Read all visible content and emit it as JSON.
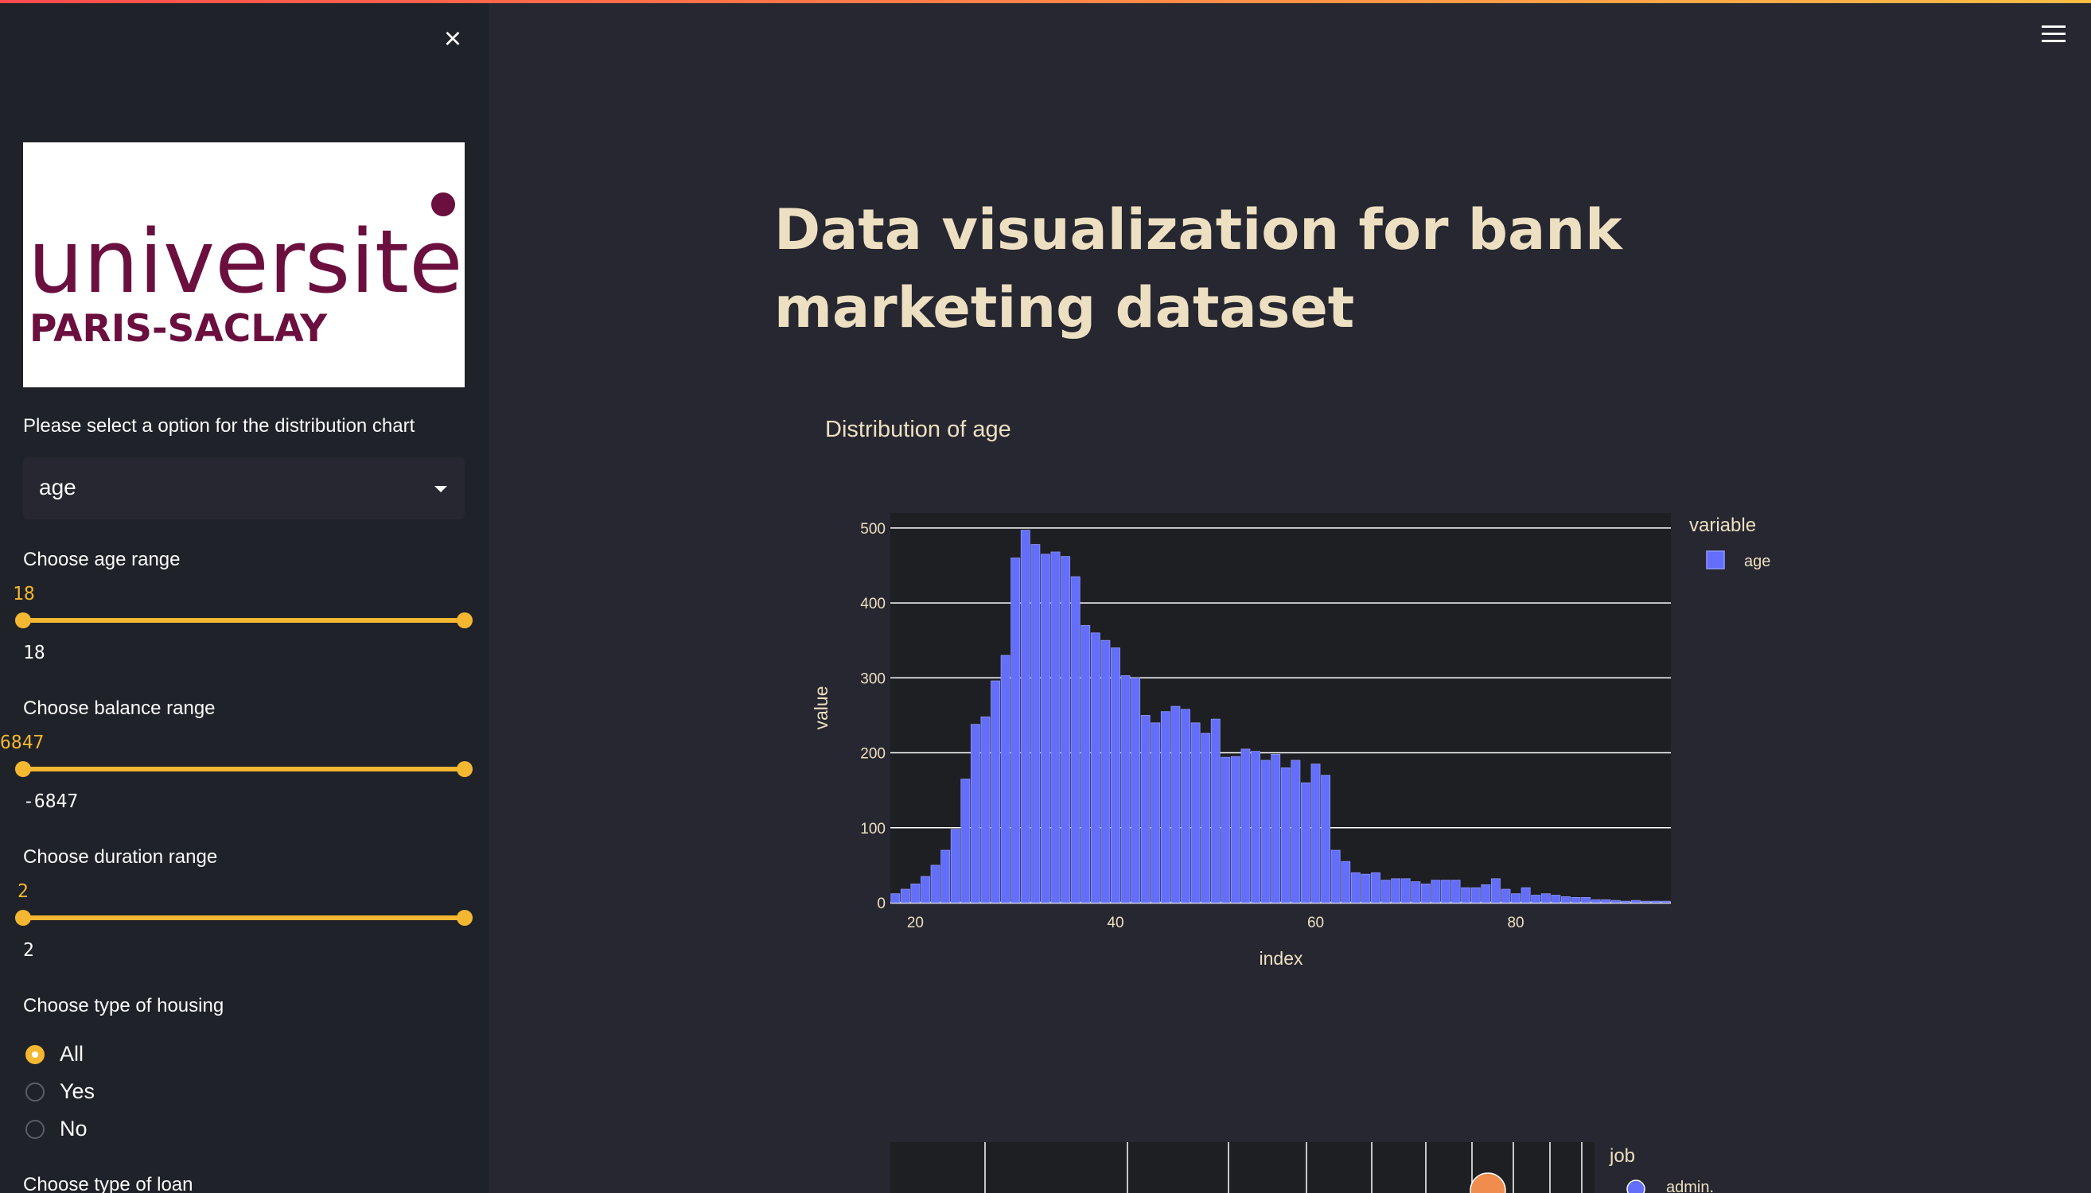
{
  "sidebar": {
    "close_icon": "close-icon",
    "logo": {
      "line1": "universite",
      "line2": "PARIS-SACLAY",
      "color": "#6b0f3f"
    },
    "select_label": "Please select a option for the distribution chart",
    "select_value": "age",
    "sliders": [
      {
        "label": "Choose age range",
        "min": "18",
        "max": "95",
        "low": "18",
        "high": "95"
      },
      {
        "label": "Choose balance range",
        "min": "-6847",
        "max": "81204",
        "low": "-6847",
        "high": "81204",
        "low_visible": "6847"
      },
      {
        "label": "Choose duration range",
        "min": "2",
        "max": "3881",
        "low": "2",
        "high": "3881"
      }
    ],
    "housing": {
      "label": "Choose type of housing",
      "options": [
        "All",
        "Yes",
        "No"
      ],
      "selected": "All"
    },
    "loan_label": "Choose type of loan"
  },
  "header": {
    "menu_icon": "hamburger-menu-icon"
  },
  "main": {
    "title": "Data visualization for bank marketing dataset"
  },
  "chart_data": [
    {
      "type": "bar",
      "title": "Distribution of age",
      "xlabel": "index",
      "ylabel": "value",
      "legend_title": "variable",
      "series": [
        {
          "name": "age",
          "color": "#636efa"
        }
      ],
      "xlim": [
        17.5,
        95.5
      ],
      "ylim": [
        0,
        520
      ],
      "xticks": [
        20,
        40,
        60,
        80
      ],
      "yticks": [
        0,
        100,
        200,
        300,
        400,
        500
      ],
      "x": [
        18,
        19,
        20,
        21,
        22,
        23,
        24,
        25,
        26,
        27,
        28,
        29,
        30,
        31,
        32,
        33,
        34,
        35,
        36,
        37,
        38,
        39,
        40,
        41,
        42,
        43,
        44,
        45,
        46,
        47,
        48,
        49,
        50,
        51,
        52,
        53,
        54,
        55,
        56,
        57,
        58,
        59,
        60,
        61,
        62,
        63,
        64,
        65,
        66,
        67,
        68,
        69,
        70,
        71,
        72,
        73,
        74,
        75,
        76,
        77,
        78,
        79,
        80,
        81,
        82,
        83,
        84,
        85,
        86,
        87,
        88,
        89,
        90,
        91,
        92,
        93,
        94,
        95
      ],
      "values": [
        12,
        18,
        25,
        35,
        50,
        70,
        98,
        165,
        238,
        248,
        296,
        330,
        460,
        497,
        478,
        465,
        468,
        462,
        435,
        370,
        360,
        350,
        340,
        303,
        300,
        250,
        240,
        255,
        262,
        258,
        240,
        226,
        245,
        194,
        195,
        205,
        202,
        190,
        198,
        180,
        190,
        160,
        185,
        170,
        70,
        55,
        40,
        38,
        40,
        30,
        32,
        32,
        28,
        25,
        30,
        30,
        30,
        20,
        20,
        24,
        32,
        18,
        12,
        20,
        10,
        12,
        10,
        8,
        7,
        7,
        4,
        4,
        3,
        2,
        3,
        2,
        2,
        2
      ],
      "legend_position": "top-right"
    },
    {
      "type": "scatter",
      "legend_title": "job",
      "series": [
        {
          "name": "admin.",
          "color": "#636efa"
        }
      ],
      "legend_position": "top-right"
    }
  ]
}
